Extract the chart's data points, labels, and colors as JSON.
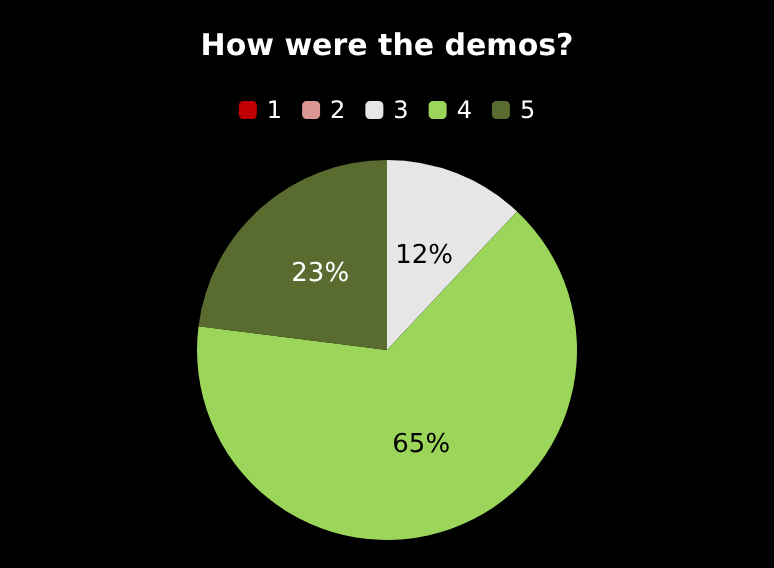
{
  "chart_data": {
    "type": "pie",
    "title": "How were the demos?",
    "categories": [
      "1",
      "2",
      "3",
      "4",
      "5"
    ],
    "values": [
      0,
      0,
      12,
      65,
      23
    ],
    "colors": [
      "#c00000",
      "#d99694",
      "#e6e6e6",
      "#9bd55a",
      "#5a6b30"
    ],
    "value_labels": [
      null,
      null,
      "12%",
      "65%",
      "23%"
    ],
    "legend": "top"
  }
}
